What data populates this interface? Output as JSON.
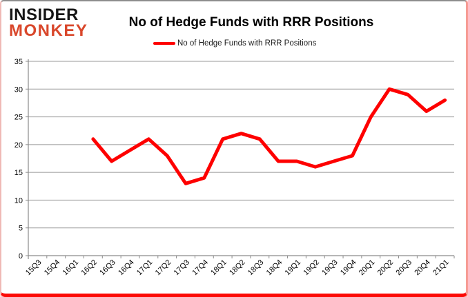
{
  "logo": {
    "line1": "INSIDER",
    "line2": "MONKEY"
  },
  "header": {
    "title": "No of Hedge Funds with RRR Positions"
  },
  "legend": {
    "label": "No of Hedge Funds with RRR Positions",
    "line_color": "#fe0000"
  },
  "colors": {
    "series_red": "#fe0000",
    "logo_black": "#161616",
    "logo_orange": "#d9472b",
    "grid_gray": "#999999",
    "axis_gray": "#8a8a8a",
    "frame_bottom_red": "#fc0a06",
    "frame_side_pink": "#f79b94",
    "frame_top_gray": "#8d8d8d"
  },
  "chart_data": {
    "type": "line",
    "title": "No of Hedge Funds with RRR Positions",
    "categories": [
      "15Q3",
      "15Q4",
      "16Q1",
      "16Q2",
      "16Q3",
      "16Q4",
      "17Q1",
      "17Q2",
      "17Q3",
      "17Q4",
      "18Q1",
      "18Q2",
      "18Q3",
      "18Q4",
      "19Q1",
      "19Q2",
      "19Q3",
      "19Q4",
      "20Q1",
      "20Q2",
      "20Q3",
      "20Q4",
      "21Q1"
    ],
    "series": [
      {
        "name": "No of Hedge Funds with RRR Positions",
        "color": "#fe0000",
        "values": [
          null,
          null,
          null,
          21,
          17,
          19,
          21,
          18,
          13,
          14,
          21,
          22,
          21,
          17,
          17,
          16,
          17,
          18,
          25,
          30,
          29,
          26,
          28
        ]
      }
    ],
    "xlabel": "",
    "ylabel": "",
    "ylim": [
      0,
      35
    ],
    "yticks": [
      0,
      5,
      10,
      15,
      20,
      25,
      30,
      35
    ],
    "grid": true,
    "legend_position": "top-center",
    "x_label_rotation": -45
  }
}
